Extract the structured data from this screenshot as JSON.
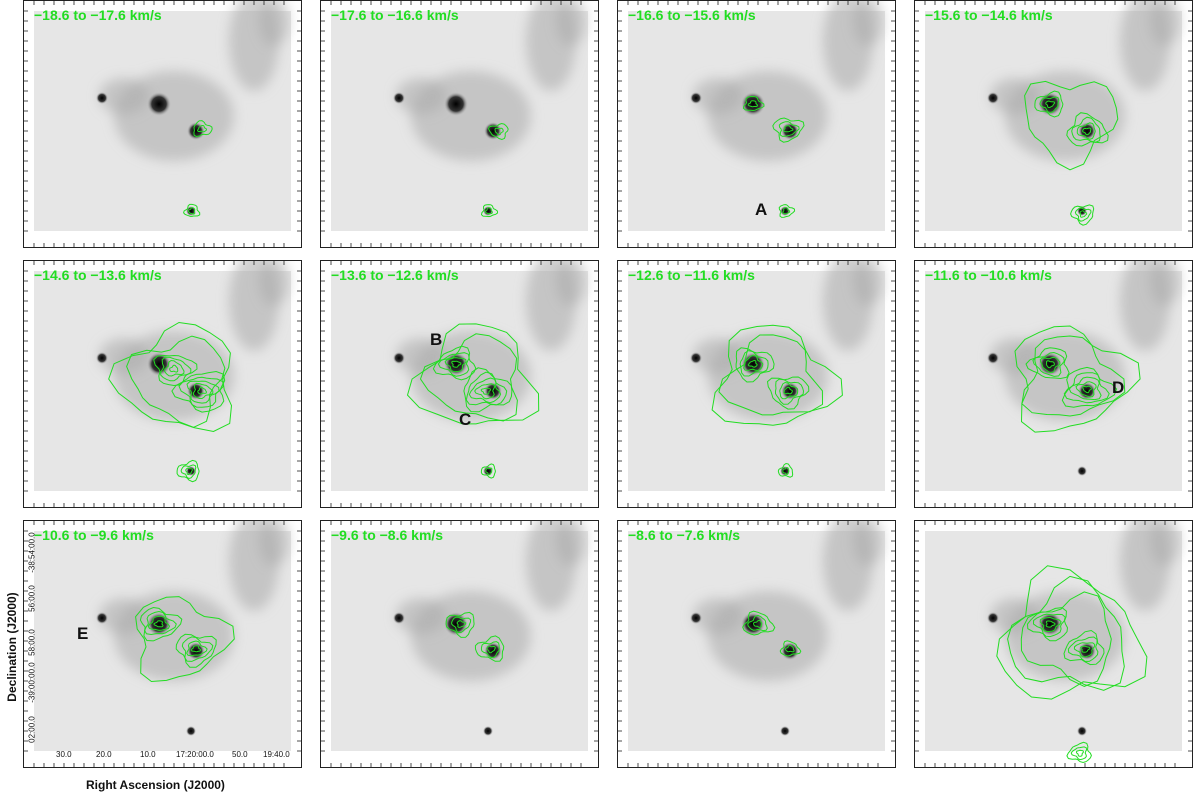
{
  "panels": [
    {
      "velocity": "−18.6 to −17.6 km/s"
    },
    {
      "velocity": "−17.6 to −16.6 km/s"
    },
    {
      "velocity": "−16.6 to −15.6 km/s"
    },
    {
      "velocity": "−15.6 to −14.6 km/s"
    },
    {
      "velocity": "−14.6 to −13.6 km/s"
    },
    {
      "velocity": "−13.6 to −12.6 km/s"
    },
    {
      "velocity": "−12.6 to −11.6 km/s"
    },
    {
      "velocity": "−11.6 to −10.6 km/s"
    },
    {
      "velocity": "−10.6 to −9.6 km/s"
    },
    {
      "velocity": "−9.6 to −8.6 km/s"
    },
    {
      "velocity": "−8.6 to −7.6 km/s"
    },
    {
      "velocity": ""
    }
  ],
  "markers": {
    "a": "A",
    "b": "B",
    "c": "C",
    "d": "D",
    "e": "E"
  },
  "axes": {
    "xlabel": "Right Ascension (J2000)",
    "ylabel": "Declination (J2000)",
    "xticks": [
      "30.0",
      "20.0",
      "10.0",
      "17:20:00.0",
      "50.0",
      "19:40.0"
    ],
    "yticks": [
      "-38:54:00.0",
      "56:00.0",
      "58:00.0",
      "-39:00:00.0",
      "02:00.0"
    ]
  },
  "colors": {
    "contour": "#22dd22",
    "label": "#22dd22"
  }
}
